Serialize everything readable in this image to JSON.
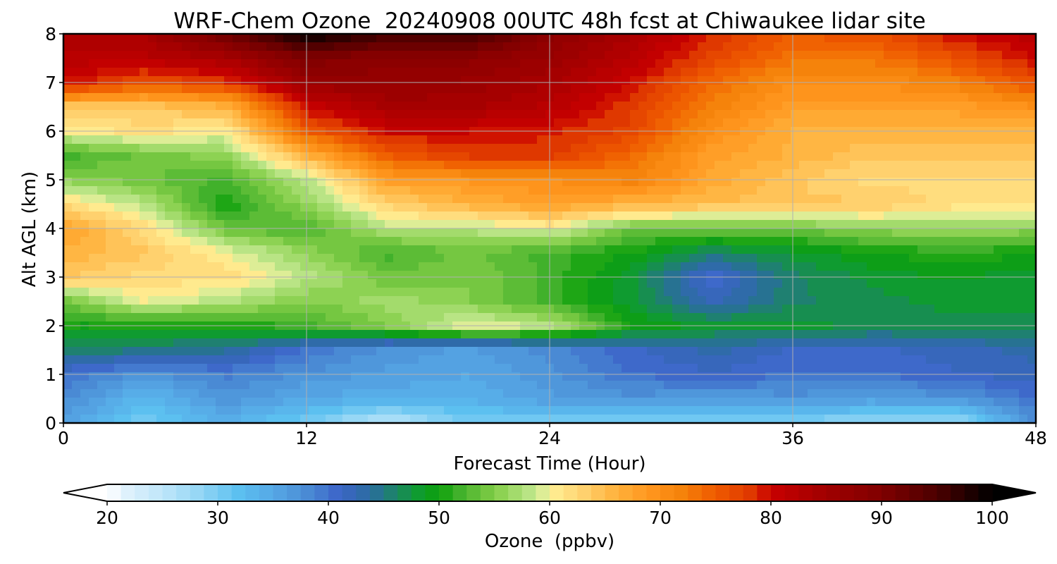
{
  "chart_data": {
    "type": "heatmap",
    "title": "WRF-Chem Ozone  20240908 00UTC 48h fcst at Chiwaukee lidar site",
    "xlabel": "Forecast Time (Hour)",
    "ylabel": "Alt AGL (km)",
    "xlim": [
      0,
      48
    ],
    "ylim": [
      0,
      8
    ],
    "x_ticks": [
      0,
      12,
      24,
      36,
      48
    ],
    "y_ticks": [
      0,
      1,
      2,
      3,
      4,
      5,
      6,
      7,
      8
    ],
    "grid": true,
    "x_grid_hours": [
      0,
      4,
      8,
      12,
      16,
      20,
      24,
      28,
      32,
      36,
      40,
      44,
      48
    ],
    "y_grid_km": [
      0,
      0.5,
      1,
      1.5,
      2,
      2.5,
      3,
      3.5,
      4,
      4.5,
      5,
      5.5,
      6,
      6.5,
      7,
      7.5,
      8
    ],
    "ozone_ppbv": [
      [
        36,
        30,
        34,
        30,
        25,
        30,
        30,
        29,
        29,
        29,
        28,
        27,
        38
      ],
      [
        38,
        33,
        37,
        35,
        34,
        34,
        36,
        37,
        36,
        37,
        36,
        37,
        40
      ],
      [
        40,
        37,
        39,
        37,
        36,
        35,
        37,
        40,
        41,
        40,
        40,
        41,
        42
      ],
      [
        46,
        45,
        44,
        40,
        37,
        36,
        38,
        41,
        43,
        41,
        41,
        42,
        43
      ],
      [
        50,
        50,
        50,
        52,
        55,
        60,
        58,
        50,
        48,
        48,
        47,
        47,
        47
      ],
      [
        54,
        60,
        58,
        55,
        57,
        55,
        52,
        48,
        42,
        46,
        47,
        48,
        48
      ],
      [
        64,
        62,
        62,
        58,
        54,
        55,
        52,
        48,
        40,
        46,
        48,
        49,
        48
      ],
      [
        66,
        64,
        60,
        56,
        52,
        54,
        52,
        50,
        46,
        48,
        50,
        51,
        50
      ],
      [
        68,
        62,
        54,
        52,
        58,
        58,
        60,
        54,
        54,
        54,
        56,
        56,
        56
      ],
      [
        62,
        58,
        50,
        56,
        63,
        66,
        68,
        66,
        65,
        64,
        64,
        62,
        62
      ],
      [
        56,
        54,
        52,
        58,
        68,
        69,
        70,
        72,
        67,
        64,
        62,
        62,
        62
      ],
      [
        52,
        54,
        56,
        66,
        75,
        78,
        78,
        74,
        68,
        66,
        64,
        64,
        64
      ],
      [
        60,
        62,
        60,
        75,
        80,
        80,
        79,
        77,
        70,
        66,
        66,
        66,
        66
      ],
      [
        64,
        64,
        66,
        80,
        84,
        84,
        82,
        78,
        72,
        68,
        68,
        68,
        70
      ],
      [
        80,
        76,
        78,
        86,
        87,
        86,
        84,
        80,
        74,
        70,
        70,
        72,
        76
      ],
      [
        82,
        82,
        84,
        90,
        88,
        88,
        86,
        82,
        77,
        73,
        73,
        76,
        80
      ],
      [
        84,
        84,
        92,
        100,
        96,
        96,
        88,
        84,
        79,
        75,
        76,
        80,
        82
      ]
    ],
    "colorbar": {
      "label": "Ozone  (ppbv)",
      "min": 20,
      "max": 100,
      "step": 1.25,
      "ticks": [
        20,
        30,
        40,
        50,
        60,
        70,
        80,
        90,
        100
      ],
      "extend": "both",
      "colors": [
        "#ffffff",
        "#dcf0fc",
        "#bfe6fa",
        "#99d8f5",
        "#5abff0",
        "#56a8e6",
        "#4b8cd4",
        "#3c64c8",
        "#2a6e9c",
        "#0f9b32",
        "#0ca00a",
        "#45b22d",
        "#82cd46",
        "#a5dc6e",
        "#c8eb96",
        "#fff096",
        "#ffd270",
        "#ffb23c",
        "#ff961e",
        "#f5820a",
        "#ef5a00",
        "#e13c00",
        "#c80000",
        "#a00000",
        "#800000",
        "#4b0000",
        "#000000"
      ],
      "color_stops": [
        20,
        22,
        25,
        28,
        32,
        35,
        38,
        41,
        44,
        48,
        50,
        52,
        55,
        57,
        59,
        60,
        63,
        66,
        69,
        72,
        75,
        78,
        80,
        85,
        90,
        95,
        100
      ]
    }
  }
}
